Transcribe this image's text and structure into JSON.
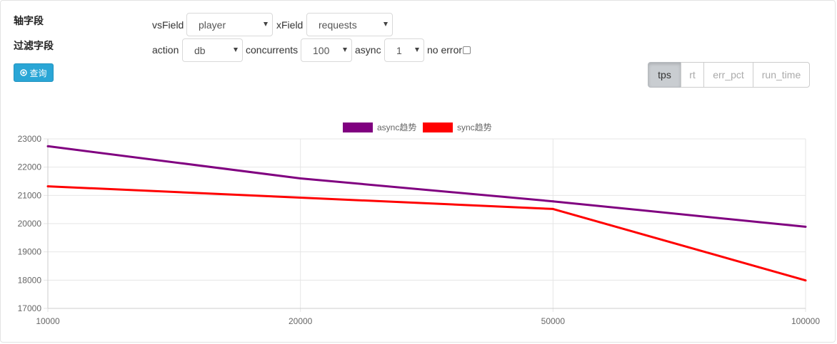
{
  "labels": {
    "axis_fields": "轴字段",
    "filter_fields": "过滤字段"
  },
  "query_button": {
    "label": "查询"
  },
  "form": {
    "vsField": {
      "label": "vsField",
      "value": "player"
    },
    "xField": {
      "label": "xField",
      "value": "requests"
    },
    "action": {
      "label": "action",
      "value": "db"
    },
    "concurrents": {
      "label": "concurrents",
      "value": "100"
    },
    "async": {
      "label": "async",
      "value": "1"
    },
    "no_error": {
      "label": "no error",
      "checked": false
    }
  },
  "metric_tabs": [
    {
      "label": "tps",
      "active": true
    },
    {
      "label": "rt",
      "active": false
    },
    {
      "label": "err_pct",
      "active": false
    },
    {
      "label": "run_time",
      "active": false
    }
  ],
  "colors": {
    "accent": "#2aa6d6",
    "async_series": "#800080",
    "sync_series": "#ff0000"
  },
  "chart_data": {
    "type": "line",
    "x": [
      "10000",
      "20000",
      "50000",
      "100000"
    ],
    "ylim": [
      17000,
      23000
    ],
    "yticks": [
      17000,
      18000,
      19000,
      20000,
      21000,
      22000,
      23000
    ],
    "grid": true,
    "legend_position": "top",
    "series": [
      {
        "name": "async趋势",
        "color": "#800080",
        "values": [
          22740,
          21600,
          20790,
          19890
        ]
      },
      {
        "name": "sync趋势",
        "color": "#ff0000",
        "values": [
          21320,
          20920,
          20520,
          17990
        ]
      }
    ]
  }
}
